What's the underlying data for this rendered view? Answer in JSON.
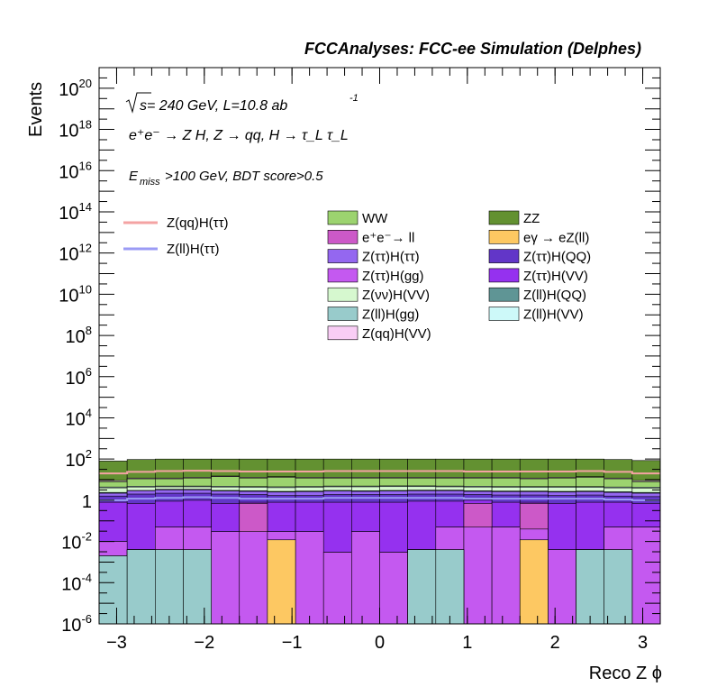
{
  "header": {
    "experiment": "FCCAnalyses: FCC-ee Simulation (Delphes)"
  },
  "annotations": {
    "energy_prefix": "s",
    "energy_rest": " = 240 GeV, L=10.8 ab",
    "energy_exp": "-1",
    "process": "e⁺e⁻ → Z H, Z → qq, H → τ_L τ_L",
    "cut_e": "E",
    "cut_sub": "miss",
    "cut_rest": ">100 GeV, BDT score>0.5"
  },
  "legend": {
    "lines": [
      {
        "label": "Z(qq)H(ττ)",
        "color": "#f4a3a3"
      },
      {
        "label": "Z(ll)H(ττ)",
        "color": "#9b9bf5"
      }
    ],
    "fills_col1": [
      {
        "label": "WW",
        "color": "#9cd36f"
      },
      {
        "label": "e⁺e⁻→ ll",
        "color": "#cc59c8"
      },
      {
        "label": "Z(ττ)H(ττ)",
        "color": "#9467f0"
      },
      {
        "label": "Z(ττ)H(gg)",
        "color": "#c459f0"
      },
      {
        "label": "Z(νν)H(VV)",
        "color": "#d6f8cf"
      },
      {
        "label": "Z(ll)H(gg)",
        "color": "#98cbcb"
      },
      {
        "label": "Z(qq)H(VV)",
        "color": "#f9cdf5"
      }
    ],
    "fills_col2": [
      {
        "label": "ZZ",
        "color": "#639131"
      },
      {
        "label": "eγ → eZ(ll)",
        "color": "#fdc862"
      },
      {
        "label": "Z(ττ)H(QQ)",
        "color": "#6236c8"
      },
      {
        "label": "Z(ττ)H(VV)",
        "color": "#9531ef"
      },
      {
        "label": "Z(ll)H(QQ)",
        "color": "#5f9595"
      },
      {
        "label": "Z(ll)H(VV)",
        "color": "#cdf9f9"
      }
    ]
  },
  "chart_data": {
    "type": "area",
    "title": "",
    "xlabel": "Reco Z ϕ",
    "ylabel": "Events",
    "xlim": [
      -3.2,
      3.2
    ],
    "ylim": [
      1e-06,
      1e+21
    ],
    "log_y": true,
    "x_ticks": [
      "−3",
      "−2",
      "−1",
      "0",
      "1",
      "2",
      "3"
    ],
    "x_tick_values": [
      -3,
      -2,
      -1,
      0,
      1,
      2,
      3
    ],
    "y_ticks": [
      {
        "base": "10",
        "exp": "-6",
        "value": 1e-06
      },
      {
        "base": "10",
        "exp": "-4",
        "value": 0.0001
      },
      {
        "base": "10",
        "exp": "-2",
        "value": 0.01
      },
      {
        "base": "1",
        "exp": "",
        "value": 1
      },
      {
        "base": "10",
        "exp": "2",
        "value": 100.0
      },
      {
        "base": "10",
        "exp": "4",
        "value": 10000.0
      },
      {
        "base": "10",
        "exp": "6",
        "value": 1000000.0
      },
      {
        "base": "10",
        "exp": "8",
        "value": 100000000.0
      },
      {
        "base": "10",
        "exp": "10",
        "value": 10000000000.0
      },
      {
        "base": "10",
        "exp": "12",
        "value": 1000000000000.0
      },
      {
        "base": "10",
        "exp": "14",
        "value": 100000000000000.0
      },
      {
        "base": "10",
        "exp": "16",
        "value": 1e+16
      },
      {
        "base": "10",
        "exp": "18",
        "value": 1e+18
      },
      {
        "base": "10",
        "exp": "20",
        "value": 1e+20
      }
    ],
    "bin_edges": [
      -3.2,
      -2.88,
      -2.56,
      -2.24,
      -1.92,
      -1.6,
      -1.28,
      -0.96,
      -0.64,
      -0.32,
      0.0,
      0.32,
      0.64,
      0.96,
      1.28,
      1.6,
      1.92,
      2.24,
      2.56,
      2.88,
      3.2
    ],
    "stacked_cumulative": [
      {
        "name": "Z(ll)H(gg)",
        "color": "#98cbcb",
        "values": [
          0.002,
          0.004,
          0.004,
          0.004,
          0.0,
          0.0,
          0.0,
          0.0,
          0.0,
          0.0,
          0.0,
          0.004,
          0.004,
          0.0,
          0.0,
          0.0,
          0.0,
          0.004,
          0.004,
          0.0
        ]
      },
      {
        "name": "eγ → eZ(ll)",
        "color": "#fdc862",
        "values": [
          0.002,
          0.004,
          0.004,
          0.004,
          0.0,
          0.0,
          0.012,
          0.0,
          0.0,
          0.0,
          0.0,
          0.004,
          0.004,
          0.0,
          0.0,
          0.012,
          0.0,
          0.004,
          0.004,
          0.0
        ]
      },
      {
        "name": "Z(ττ)H(gg)",
        "color": "#c459f0",
        "values": [
          0.01,
          0.004,
          0.05,
          0.05,
          0.03,
          0.03,
          0.03,
          0.03,
          0.003,
          0.03,
          0.003,
          0.004,
          0.05,
          0.05,
          0.05,
          0.04,
          0.004,
          0.004,
          0.05,
          0.05
        ]
      },
      {
        "name": "e⁺e⁻→ ll",
        "color": "#cc59c8",
        "values": [
          0.01,
          0.004,
          0.05,
          0.05,
          0.03,
          0.7,
          0.03,
          0.03,
          0.003,
          0.03,
          0.003,
          0.004,
          0.05,
          0.7,
          0.05,
          0.7,
          0.004,
          0.004,
          0.05,
          0.05
        ]
      },
      {
        "name": "Z(ττ)H(VV)",
        "color": "#9531ef",
        "values": [
          0.8,
          0.7,
          0.9,
          1.0,
          0.7,
          0.8,
          0.8,
          0.8,
          0.8,
          0.8,
          0.8,
          0.9,
          0.9,
          1.0,
          0.8,
          0.8,
          0.7,
          0.8,
          0.8,
          0.7
        ]
      },
      {
        "name": "Z(ττ)H(QQ)",
        "color": "#6236c8",
        "values": [
          1.6,
          2.0,
          2.2,
          2.2,
          2.0,
          1.9,
          1.7,
          1.7,
          1.9,
          1.9,
          1.9,
          2.0,
          2.0,
          1.9,
          1.8,
          1.8,
          1.7,
          1.8,
          1.6,
          1.5
        ]
      },
      {
        "name": "Z(ττ)H(ττ)",
        "color": "#9467f0",
        "values": [
          2.2,
          2.9,
          3.2,
          3.2,
          2.8,
          2.7,
          2.5,
          2.6,
          2.8,
          2.7,
          2.8,
          2.9,
          2.9,
          2.7,
          2.6,
          2.6,
          2.5,
          2.6,
          2.4,
          2.2
        ]
      },
      {
        "name": "Z(ll)H(QQ)",
        "color": "#5f9595",
        "values": [
          2.4,
          3.0,
          3.4,
          3.4,
          3.0,
          2.9,
          2.7,
          2.8,
          3.0,
          2.9,
          3.0,
          3.1,
          3.1,
          2.9,
          2.8,
          2.8,
          2.7,
          2.8,
          2.6,
          2.4
        ]
      },
      {
        "name": "Z(νν)H(VV)",
        "color": "#d6f8cf",
        "values": [
          4.0,
          4.4,
          4.5,
          4.5,
          4.4,
          4.2,
          4.1,
          4.3,
          4.5,
          4.5,
          4.6,
          4.6,
          4.5,
          4.4,
          4.3,
          4.2,
          4.2,
          4.2,
          4.0,
          3.9
        ]
      },
      {
        "name": "Z(ll)H(VV)",
        "color": "#cdf9f9",
        "values": [
          4.4,
          4.8,
          4.9,
          4.9,
          4.8,
          4.6,
          4.5,
          4.7,
          4.9,
          4.9,
          5.0,
          5.0,
          4.9,
          4.8,
          4.7,
          4.6,
          4.6,
          4.6,
          4.4,
          4.3
        ]
      },
      {
        "name": "WW",
        "color": "#9cd36f",
        "values": [
          8,
          11,
          11,
          12,
          14,
          12,
          13,
          12,
          12,
          12,
          12,
          12,
          12,
          12,
          12,
          11,
          12,
          13,
          11,
          8
        ]
      },
      {
        "name": "Z(qq)H(VV)",
        "color": "#f9cdf5",
        "values": [
          9,
          12,
          12,
          13,
          15,
          13,
          14,
          13,
          13,
          13,
          13,
          13,
          13,
          13,
          13,
          12,
          13,
          14,
          12,
          9
        ]
      },
      {
        "name": "ZZ",
        "color": "#639131",
        "values": [
          80,
          95,
          100,
          100,
          100,
          100,
          100,
          100,
          100,
          100,
          100,
          100,
          100,
          100,
          100,
          100,
          100,
          100,
          95,
          85
        ]
      }
    ],
    "lines": [
      {
        "name": "Z(qq)H(ττ)",
        "color": "#f4a3a3",
        "values": [
          20,
          24,
          26,
          27,
          26,
          25,
          25,
          25,
          26,
          26,
          26,
          26,
          26,
          25,
          25,
          25,
          25,
          26,
          24,
          20
        ]
      },
      {
        "name": "Z(ll)H(ττ)",
        "color": "#9b9bf5",
        "values": [
          1.0,
          1.2,
          1.3,
          1.4,
          1.3,
          1.2,
          1.2,
          1.2,
          1.3,
          1.3,
          1.3,
          1.3,
          1.3,
          1.2,
          1.2,
          1.2,
          1.2,
          1.2,
          1.1,
          1.0
        ]
      }
    ]
  }
}
